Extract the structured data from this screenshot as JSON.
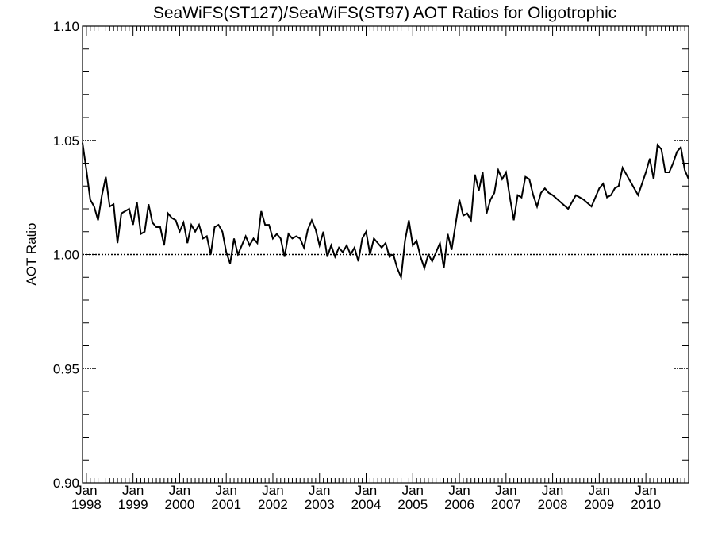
{
  "chart_data": {
    "type": "line",
    "title": "SeaWiFS(ST127)/SeaWiFS(ST97)  AOT Ratios for Oligotrophic",
    "ylabel": "AOT Ratio",
    "xlabel": "",
    "ylim": [
      0.9,
      1.1
    ],
    "xlim": [
      "1997-12",
      "2010-12"
    ],
    "y_ticks": [
      "0.90",
      "0.95",
      "1.00",
      "1.05",
      "1.10"
    ],
    "x_ticks": [
      {
        "month": "Jan",
        "year": "1998"
      },
      {
        "month": "Jan",
        "year": "1999"
      },
      {
        "month": "Jan",
        "year": "2000"
      },
      {
        "month": "Jan",
        "year": "2001"
      },
      {
        "month": "Jan",
        "year": "2002"
      },
      {
        "month": "Jan",
        "year": "2003"
      },
      {
        "month": "Jan",
        "year": "2004"
      },
      {
        "month": "Jan",
        "year": "2005"
      },
      {
        "month": "Jan",
        "year": "2006"
      },
      {
        "month": "Jan",
        "year": "2007"
      },
      {
        "month": "Jan",
        "year": "2008"
      },
      {
        "month": "Jan",
        "year": "2009"
      },
      {
        "month": "Jan",
        "year": "2010"
      }
    ],
    "reference_line": 1.0,
    "grid": false,
    "series": [
      {
        "x": [
          "1997-12",
          "1998-01",
          "1998-02",
          "1998-03",
          "1998-04",
          "1998-05",
          "1998-06",
          "1998-07",
          "1998-08",
          "1998-09",
          "1998-10",
          "1998-11",
          "1998-12",
          "1999-01",
          "1999-02",
          "1999-03",
          "1999-04",
          "1999-05",
          "1999-06",
          "1999-07",
          "1999-08",
          "1999-09",
          "1999-10",
          "1999-11",
          "1999-12",
          "2000-01",
          "2000-02",
          "2000-03",
          "2000-04",
          "2000-05",
          "2000-06",
          "2000-07",
          "2000-08",
          "2000-09",
          "2000-10",
          "2000-11",
          "2000-12",
          "2001-01",
          "2001-02",
          "2001-03",
          "2001-04",
          "2001-05",
          "2001-06",
          "2001-07",
          "2001-08",
          "2001-09",
          "2001-10",
          "2001-11",
          "2001-12",
          "2002-01",
          "2002-02",
          "2002-03",
          "2002-04",
          "2002-05",
          "2002-06",
          "2002-07",
          "2002-08",
          "2002-09",
          "2002-10",
          "2002-11",
          "2002-12",
          "2003-01",
          "2003-02",
          "2003-03",
          "2003-04",
          "2003-05",
          "2003-06",
          "2003-07",
          "2003-08",
          "2003-09",
          "2003-10",
          "2003-11",
          "2003-12",
          "2004-01",
          "2004-02",
          "2004-03",
          "2004-04",
          "2004-05",
          "2004-06",
          "2004-07",
          "2004-08",
          "2004-09",
          "2004-10",
          "2004-11",
          "2004-12",
          "2005-01",
          "2005-02",
          "2005-03",
          "2005-04",
          "2005-05",
          "2005-06",
          "2005-07",
          "2005-08",
          "2005-09",
          "2005-10",
          "2005-11",
          "2005-12",
          "2006-01",
          "2006-02",
          "2006-03",
          "2006-04",
          "2006-05",
          "2006-06",
          "2006-07",
          "2006-08",
          "2006-09",
          "2006-10",
          "2006-11",
          "2006-12",
          "2007-01",
          "2007-02",
          "2007-03",
          "2007-04",
          "2007-05",
          "2007-06",
          "2007-07",
          "2007-08",
          "2007-09",
          "2007-10",
          "2007-11",
          "2007-12",
          "2008-01",
          "2008-03",
          "2008-05",
          "2008-07",
          "2008-09",
          "2008-11",
          "2009-01",
          "2009-02",
          "2009-03",
          "2009-04",
          "2009-05",
          "2009-06",
          "2009-07",
          "2009-09",
          "2009-11",
          "2010-01",
          "2010-02",
          "2010-03",
          "2010-04",
          "2010-05",
          "2010-06",
          "2010-07",
          "2010-08",
          "2010-09",
          "2010-10",
          "2010-11",
          "2010-12"
        ],
        "y": [
          1.049,
          1.037,
          1.024,
          1.021,
          1.015,
          1.026,
          1.034,
          1.021,
          1.022,
          1.005,
          1.018,
          1.019,
          1.02,
          1.013,
          1.023,
          1.009,
          1.01,
          1.022,
          1.014,
          1.012,
          1.012,
          1.004,
          1.018,
          1.016,
          1.015,
          1.01,
          1.014,
          1.005,
          1.013,
          1.01,
          1.013,
          1.007,
          1.008,
          1.0,
          1.012,
          1.013,
          1.01,
          1.001,
          0.996,
          1.007,
          1.0,
          1.004,
          1.008,
          1.004,
          1.007,
          1.005,
          1.019,
          1.013,
          1.013,
          1.007,
          1.009,
          1.007,
          0.999,
          1.009,
          1.007,
          1.008,
          1.007,
          1.003,
          1.011,
          1.015,
          1.011,
          1.004,
          1.01,
          0.999,
          1.004,
          0.999,
          1.003,
          1.001,
          1.004,
          1.0,
          1.003,
          0.997,
          1.007,
          1.01,
          1.0,
          1.007,
          1.005,
          1.003,
          1.005,
          0.999,
          1.0,
          0.994,
          0.99,
          1.006,
          1.015,
          1.004,
          1.006,
          0.999,
          0.994,
          1.0,
          0.997,
          1.001,
          1.005,
          0.994,
          1.009,
          1.002,
          1.013,
          1.024,
          1.017,
          1.018,
          1.015,
          1.035,
          1.028,
          1.036,
          1.018,
          1.024,
          1.027,
          1.037,
          1.033,
          1.036,
          1.025,
          1.015,
          1.026,
          1.025,
          1.034,
          1.033,
          1.026,
          1.021,
          1.027,
          1.029,
          1.027,
          1.026,
          1.023,
          1.02,
          1.026,
          1.024,
          1.021,
          1.029,
          1.031,
          1.025,
          1.026,
          1.029,
          1.03,
          1.038,
          1.032,
          1.026,
          1.036,
          1.042,
          1.033,
          1.048,
          1.046,
          1.036,
          1.036,
          1.04,
          1.045,
          1.047,
          1.037,
          1.033
        ]
      }
    ]
  }
}
